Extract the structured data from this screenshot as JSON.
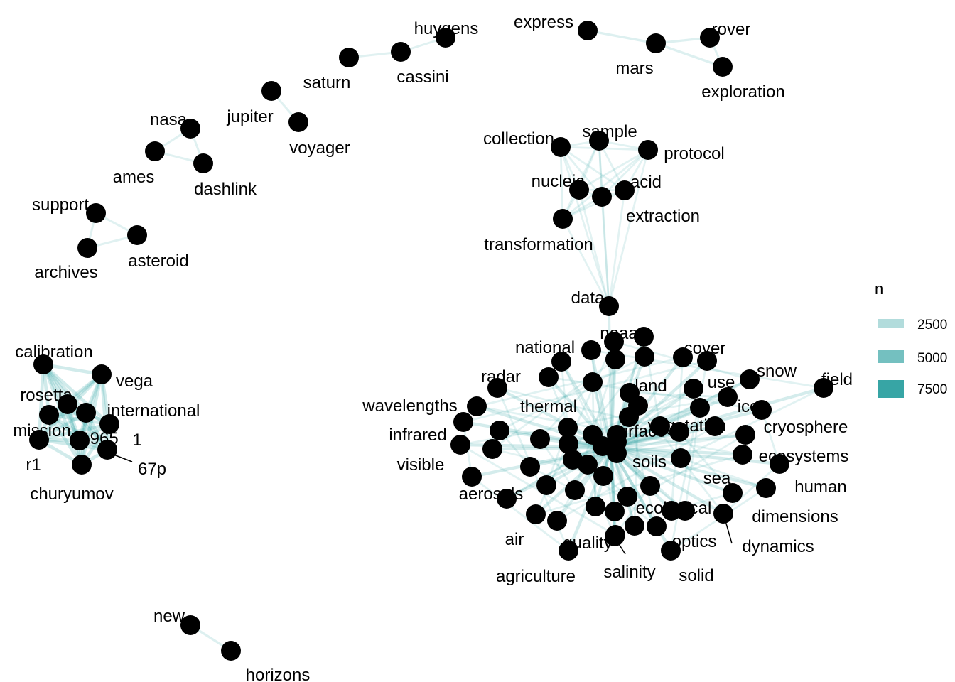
{
  "chart_data": {
    "type": "network",
    "title": "",
    "legend": {
      "title": "n",
      "entries": [
        {
          "label": "2500",
          "value": 2500
        },
        {
          "label": "5000",
          "value": 5000
        },
        {
          "label": "7500",
          "value": 7500
        }
      ]
    },
    "colors": {
      "edge": "#1a9a9a",
      "node": "#000000",
      "legend_2500": "#b2dcdc",
      "legend_5000": "#74c0c0",
      "legend_7500": "#37a5a5"
    },
    "nodes": [
      {
        "label": "huygens"
      },
      {
        "label": "express"
      },
      {
        "label": "rover"
      },
      {
        "label": "mars"
      },
      {
        "label": "exploration"
      },
      {
        "label": "cassini"
      },
      {
        "label": "saturn"
      },
      {
        "label": "jupiter"
      },
      {
        "label": "voyager"
      },
      {
        "label": "nasa"
      },
      {
        "label": "ames"
      },
      {
        "label": "dashlink"
      },
      {
        "label": "support"
      },
      {
        "label": "asteroid"
      },
      {
        "label": "archives"
      },
      {
        "label": "collection"
      },
      {
        "label": "sample"
      },
      {
        "label": "protocol"
      },
      {
        "label": "nucleic"
      },
      {
        "label": "acid"
      },
      {
        "label": "extraction"
      },
      {
        "label": "transformation"
      },
      {
        "label": "data"
      },
      {
        "label": "calibration"
      },
      {
        "label": "vega"
      },
      {
        "label": "rosetta"
      },
      {
        "label": "international"
      },
      {
        "label": "mission"
      },
      {
        "label": "1965"
      },
      {
        "label": "1"
      },
      {
        "label": "r1"
      },
      {
        "label": "67p"
      },
      {
        "label": "churyumov"
      },
      {
        "label": "noaa"
      },
      {
        "label": "national"
      },
      {
        "label": "cover"
      },
      {
        "label": "land"
      },
      {
        "label": "radar"
      },
      {
        "label": "thermal"
      },
      {
        "label": "use"
      },
      {
        "label": "snow"
      },
      {
        "label": "field"
      },
      {
        "label": "wavelengths"
      },
      {
        "label": "ice"
      },
      {
        "label": "vegetation"
      },
      {
        "label": "cryosphere"
      },
      {
        "label": "infrared"
      },
      {
        "label": "surface"
      },
      {
        "label": "soils"
      },
      {
        "label": "ecosystems"
      },
      {
        "label": "visible"
      },
      {
        "label": "sea"
      },
      {
        "label": "human"
      },
      {
        "label": "aerosols"
      },
      {
        "label": "ecological"
      },
      {
        "label": "dimensions"
      },
      {
        "label": "air"
      },
      {
        "label": "quality"
      },
      {
        "label": "optics"
      },
      {
        "label": "dynamics"
      },
      {
        "label": "agriculture"
      },
      {
        "label": "salinity"
      },
      {
        "label": "solid"
      },
      {
        "label": "new"
      },
      {
        "label": "horizons"
      }
    ],
    "edges": [
      {
        "from": "express",
        "to": "mars",
        "n": 2000
      },
      {
        "from": "mars",
        "to": "rover",
        "n": 2000
      },
      {
        "from": "mars",
        "to": "exploration",
        "n": 2000
      },
      {
        "from": "rover",
        "to": "exploration",
        "n": 1500
      },
      {
        "from": "huygens",
        "to": "cassini",
        "n": 1500
      },
      {
        "from": "cassini",
        "to": "saturn",
        "n": 1500
      },
      {
        "from": "jupiter",
        "to": "voyager",
        "n": 1500
      },
      {
        "from": "nasa",
        "to": "ames",
        "n": 1500
      },
      {
        "from": "nasa",
        "to": "dashlink",
        "n": 1500
      },
      {
        "from": "ames",
        "to": "dashlink",
        "n": 1500
      },
      {
        "from": "support",
        "to": "asteroid",
        "n": 1500
      },
      {
        "from": "support",
        "to": "archives",
        "n": 1500
      },
      {
        "from": "asteroid",
        "to": "archives",
        "n": 1500
      },
      {
        "from": "new",
        "to": "horizons",
        "n": 2000
      }
    ]
  }
}
